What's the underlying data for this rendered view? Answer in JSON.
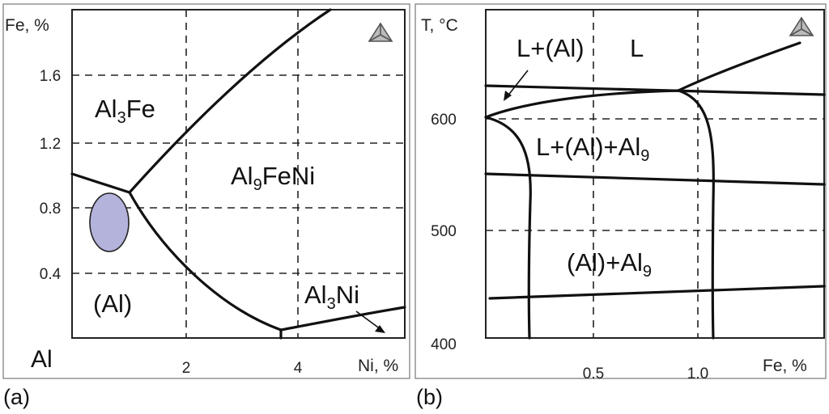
{
  "panel_a": {
    "label": "(a)",
    "y_axis_label": "Fe, %",
    "x_axis_label": "Ni, %",
    "origin_label": "Al",
    "y_ticks": [
      "0.4",
      "0.8",
      "1.2",
      "1.6"
    ],
    "x_ticks": [
      "2",
      "4"
    ],
    "regions": {
      "al3fe": {
        "main": "Al",
        "sub": "3",
        "rest": "Fe"
      },
      "al9feni": {
        "main": "Al",
        "sub": "9",
        "rest": "FeNi"
      },
      "al": {
        "main": "(Al)"
      },
      "al3ni": {
        "main": "Al",
        "sub": "3",
        "rest": "Ni"
      }
    },
    "highlight_color": "#b3b3dc"
  },
  "panel_b": {
    "label": "(b)",
    "y_axis_label": "T, °C",
    "x_axis_label": "Fe, %",
    "y_ticks": [
      "400",
      "500",
      "600"
    ],
    "x_ticks": [
      "0.5",
      "1.0"
    ],
    "regions": {
      "l_al": {
        "main": "L+(Al)"
      },
      "l": {
        "main": "L"
      },
      "l_al_al9": {
        "main": "L+(Al)+Al",
        "sub": "9"
      },
      "al_al9": {
        "main": "(Al)+Al",
        "sub": "9"
      }
    }
  },
  "logo_icon": "thermo-calc-triangle-icon"
}
